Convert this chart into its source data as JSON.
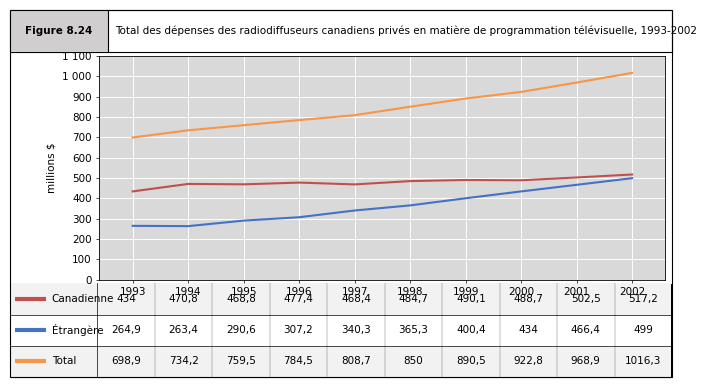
{
  "figure_label": "Figure 8.24",
  "title_text": "Total des dépenses des radiodiffuseurs canadiens privés en matière de programmation télévisuelle, 1993-2002",
  "ylabel": "millions $",
  "years": [
    1993,
    1994,
    1995,
    1996,
    1997,
    1998,
    1999,
    2000,
    2001,
    2002
  ],
  "canadienne": [
    434,
    470.8,
    468.8,
    477.4,
    468.4,
    484.7,
    490.1,
    488.7,
    502.5,
    517.2
  ],
  "etrangere": [
    264.9,
    263.4,
    290.6,
    307.2,
    340.3,
    365.3,
    400.4,
    434,
    466.4,
    499
  ],
  "total": [
    698.9,
    734.2,
    759.5,
    784.5,
    808.7,
    850,
    890.5,
    922.8,
    968.9,
    1016.3
  ],
  "canadienne_color": "#c0504d",
  "etrangere_color": "#4472c4",
  "total_color": "#f79646",
  "ylim": [
    0,
    1100
  ],
  "yticks": [
    0,
    100,
    200,
    300,
    400,
    500,
    600,
    700,
    800,
    900,
    1000,
    1100
  ],
  "header_bg": "#d0cece",
  "plot_bg": "#d9d9d9",
  "grid_color": "#ffffff",
  "legend_labels": [
    "Canadienne",
    "Étrangère",
    "Total"
  ],
  "table_rows": [
    [
      "Canadienne",
      434,
      470.8,
      468.8,
      477.4,
      468.4,
      484.7,
      490.1,
      488.7,
      502.5,
      517.2
    ],
    [
      "Étrangère",
      264.9,
      263.4,
      290.6,
      307.2,
      340.3,
      365.3,
      400.4,
      434,
      466.4,
      499
    ],
    [
      "Total",
      698.9,
      734.2,
      759.5,
      784.5,
      808.7,
      850,
      890.5,
      922.8,
      968.9,
      1016.3
    ]
  ]
}
